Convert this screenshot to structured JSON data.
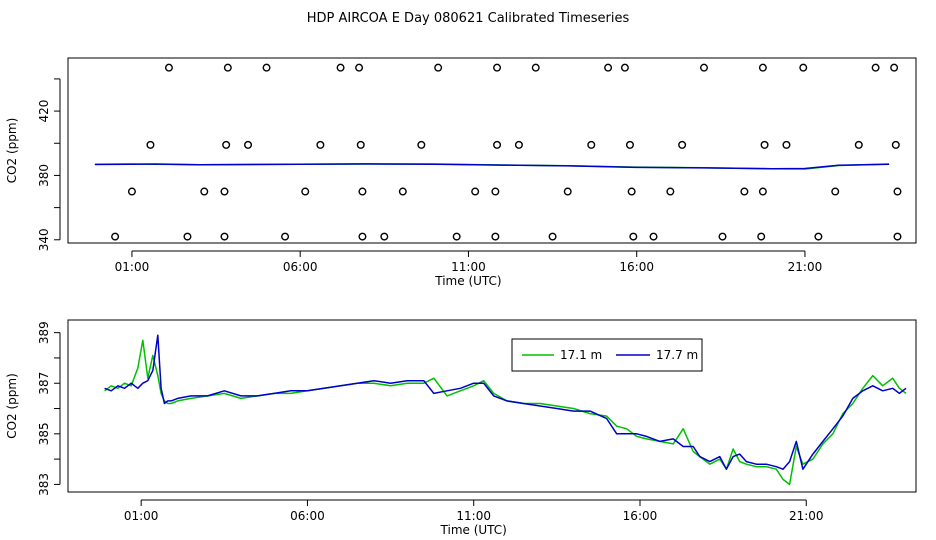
{
  "title": "HDP AIRCOA E  Day 080621  Calibrated Timeseries",
  "chart_data": [
    {
      "type": "scatter",
      "xlabel": "Time (UTC)",
      "ylabel": "CO2 (ppm)",
      "xlim": [
        -0.9,
        24.3
      ],
      "ylim": [
        338,
        453
      ],
      "xticks": [
        1,
        6,
        11,
        16,
        21
      ],
      "xtick_labels": [
        "01:00",
        "06:00",
        "11:00",
        "16:00",
        "21:00"
      ],
      "yticks": [
        340,
        380,
        420
      ],
      "ytick_labels": [
        "340",
        "380",
        "420"
      ],
      "yticks_unlabeled": [
        360,
        400,
        440
      ],
      "series": [
        {
          "marker": "open-circle",
          "color": "#000000",
          "points": [
            [
              2.1,
              447
            ],
            [
              3.85,
              447
            ],
            [
              5.0,
              447
            ],
            [
              7.2,
              447
            ],
            [
              7.75,
              447
            ],
            [
              10.1,
              447
            ],
            [
              11.85,
              447
            ],
            [
              13.0,
              447
            ],
            [
              15.15,
              447
            ],
            [
              15.65,
              447
            ],
            [
              18.0,
              447
            ],
            [
              19.75,
              447
            ],
            [
              20.95,
              447
            ],
            [
              23.1,
              447
            ],
            [
              23.65,
              447
            ],
            [
              1.55,
              399
            ],
            [
              3.8,
              399
            ],
            [
              4.45,
              399
            ],
            [
              6.6,
              399
            ],
            [
              7.8,
              399
            ],
            [
              9.6,
              399
            ],
            [
              11.85,
              399
            ],
            [
              12.5,
              399
            ],
            [
              14.65,
              399
            ],
            [
              15.8,
              399
            ],
            [
              17.35,
              399
            ],
            [
              19.8,
              399
            ],
            [
              20.45,
              399
            ],
            [
              22.6,
              399
            ],
            [
              23.7,
              399
            ],
            [
              1.0,
              370
            ],
            [
              3.15,
              370
            ],
            [
              3.75,
              370
            ],
            [
              6.15,
              370
            ],
            [
              7.85,
              370
            ],
            [
              9.05,
              370
            ],
            [
              11.2,
              370
            ],
            [
              11.8,
              370
            ],
            [
              13.95,
              370
            ],
            [
              15.85,
              370
            ],
            [
              17.0,
              370
            ],
            [
              19.2,
              370
            ],
            [
              19.75,
              370
            ],
            [
              21.9,
              370
            ],
            [
              23.75,
              370
            ],
            [
              0.5,
              342
            ],
            [
              2.65,
              342
            ],
            [
              3.75,
              342
            ],
            [
              5.55,
              342
            ],
            [
              7.85,
              342
            ],
            [
              8.5,
              342
            ],
            [
              10.65,
              342
            ],
            [
              11.8,
              342
            ],
            [
              13.5,
              342
            ],
            [
              15.9,
              342
            ],
            [
              16.5,
              342
            ],
            [
              18.55,
              342
            ],
            [
              19.7,
              342
            ],
            [
              21.4,
              342
            ],
            [
              23.75,
              342
            ]
          ]
        },
        {
          "name": "",
          "color": "#00c000",
          "x": [
            -0.1,
            1.0,
            1.7,
            3.0,
            6.0,
            8.0,
            10.0,
            12.0,
            14.0,
            16.0,
            18.0,
            20.0,
            21.0,
            22.0,
            23.5
          ],
          "y": [
            386.9,
            387.1,
            387.0,
            386.7,
            387.0,
            387.1,
            387.1,
            386.5,
            386.0,
            385.2,
            384.8,
            384.2,
            384.0,
            386.2,
            387.1
          ]
        },
        {
          "name": "",
          "color": "#0000cc",
          "x": [
            -0.1,
            1.0,
            1.7,
            3.0,
            6.0,
            8.0,
            10.0,
            12.0,
            14.0,
            16.0,
            18.0,
            20.0,
            21.0,
            22.0,
            23.5
          ],
          "y": [
            386.8,
            387.0,
            387.1,
            386.6,
            387.0,
            387.2,
            387.0,
            386.4,
            385.9,
            385.0,
            384.7,
            384.2,
            384.3,
            386.3,
            387.0
          ]
        }
      ]
    },
    {
      "type": "line",
      "xlabel": "Time (UTC)",
      "ylabel": "CO2 (ppm)",
      "xlim": [
        -1.2,
        24.3
      ],
      "ylim": [
        382.7,
        389.5
      ],
      "xticks": [
        1,
        6,
        11,
        16,
        21
      ],
      "xtick_labels": [
        "01:00",
        "06:00",
        "11:00",
        "16:00",
        "21:00"
      ],
      "yticks": [
        383,
        385,
        387,
        389
      ],
      "ytick_labels": [
        "383",
        "385",
        "387",
        "389"
      ],
      "yticks_unlabeled": [
        384,
        386,
        388
      ],
      "legend": {
        "position": "top-right",
        "entries": [
          {
            "label": "17.1 m",
            "color": "#00c000"
          },
          {
            "label": "17.7 m",
            "color": "#0000cc"
          }
        ]
      },
      "series": [
        {
          "name": "17.1 m",
          "color": "#00c000",
          "x": [
            -0.1,
            0.1,
            0.3,
            0.5,
            0.7,
            0.9,
            1.05,
            1.2,
            1.35,
            1.5,
            1.6,
            1.7,
            1.8,
            1.9,
            2.1,
            2.5,
            3.0,
            3.5,
            4.0,
            4.5,
            5.0,
            5.5,
            6.0,
            6.5,
            7.0,
            7.5,
            8.0,
            8.5,
            9.0,
            9.5,
            9.8,
            10.2,
            10.6,
            11.0,
            11.3,
            11.6,
            12.0,
            12.5,
            13.0,
            13.5,
            14.0,
            14.5,
            15.0,
            15.3,
            15.6,
            15.9,
            16.2,
            16.6,
            17.0,
            17.3,
            17.6,
            17.8,
            18.1,
            18.4,
            18.6,
            18.8,
            19.0,
            19.2,
            19.5,
            19.8,
            20.1,
            20.3,
            20.5,
            20.7,
            20.9,
            21.2,
            21.5,
            21.8,
            22.1,
            22.4,
            22.7,
            23.0,
            23.3,
            23.6,
            23.8,
            24.0
          ],
          "y": [
            386.7,
            386.9,
            386.8,
            387.0,
            386.9,
            387.6,
            388.7,
            387.2,
            388.1,
            387.3,
            386.6,
            386.3,
            386.2,
            386.2,
            386.3,
            386.4,
            386.5,
            386.6,
            386.4,
            386.5,
            386.6,
            386.6,
            386.7,
            386.8,
            386.9,
            387.0,
            387.0,
            386.9,
            387.0,
            387.0,
            387.2,
            386.5,
            386.7,
            386.9,
            387.1,
            386.6,
            386.3,
            386.2,
            386.2,
            386.1,
            386.0,
            385.8,
            385.7,
            385.3,
            385.2,
            384.9,
            384.8,
            384.7,
            384.6,
            385.2,
            384.3,
            384.1,
            383.8,
            384.0,
            383.6,
            384.4,
            383.9,
            383.8,
            383.7,
            383.7,
            383.6,
            383.2,
            383.0,
            384.5,
            383.8,
            384.0,
            384.6,
            385.0,
            385.8,
            386.2,
            386.8,
            387.3,
            386.9,
            387.2,
            386.8,
            386.6
          ]
        },
        {
          "name": "17.7 m",
          "color": "#0000cc",
          "x": [
            -0.1,
            0.1,
            0.3,
            0.5,
            0.7,
            0.9,
            1.05,
            1.2,
            1.35,
            1.5,
            1.6,
            1.7,
            1.8,
            1.9,
            2.1,
            2.5,
            3.0,
            3.5,
            4.0,
            4.5,
            5.0,
            5.5,
            6.0,
            6.5,
            7.0,
            7.5,
            8.0,
            8.5,
            9.0,
            9.5,
            9.8,
            10.2,
            10.6,
            11.0,
            11.3,
            11.6,
            12.0,
            12.5,
            13.0,
            13.5,
            14.0,
            14.5,
            15.0,
            15.3,
            15.6,
            15.9,
            16.2,
            16.6,
            17.0,
            17.3,
            17.6,
            17.8,
            18.1,
            18.4,
            18.6,
            18.8,
            19.0,
            19.2,
            19.5,
            19.8,
            20.1,
            20.3,
            20.5,
            20.7,
            20.9,
            21.2,
            21.5,
            21.8,
            22.1,
            22.4,
            22.7,
            23.0,
            23.3,
            23.6,
            23.8,
            24.0
          ],
          "y": [
            386.8,
            386.7,
            386.9,
            386.8,
            387.0,
            386.8,
            387.0,
            387.1,
            387.5,
            388.9,
            386.8,
            386.2,
            386.3,
            386.3,
            386.4,
            386.5,
            386.5,
            386.7,
            386.5,
            386.5,
            386.6,
            386.7,
            386.7,
            386.8,
            386.9,
            387.0,
            387.1,
            387.0,
            387.1,
            387.1,
            386.6,
            386.7,
            386.8,
            387.0,
            387.0,
            386.5,
            386.3,
            386.2,
            386.1,
            386.0,
            385.9,
            385.9,
            385.6,
            385.0,
            385.0,
            385.0,
            384.9,
            384.7,
            384.8,
            384.5,
            384.5,
            384.1,
            383.9,
            384.1,
            383.6,
            384.1,
            384.2,
            383.9,
            383.8,
            383.8,
            383.7,
            383.6,
            383.9,
            384.7,
            383.6,
            384.2,
            384.7,
            385.2,
            385.7,
            386.4,
            386.7,
            386.9,
            386.7,
            386.8,
            386.6,
            386.8
          ]
        }
      ]
    }
  ]
}
